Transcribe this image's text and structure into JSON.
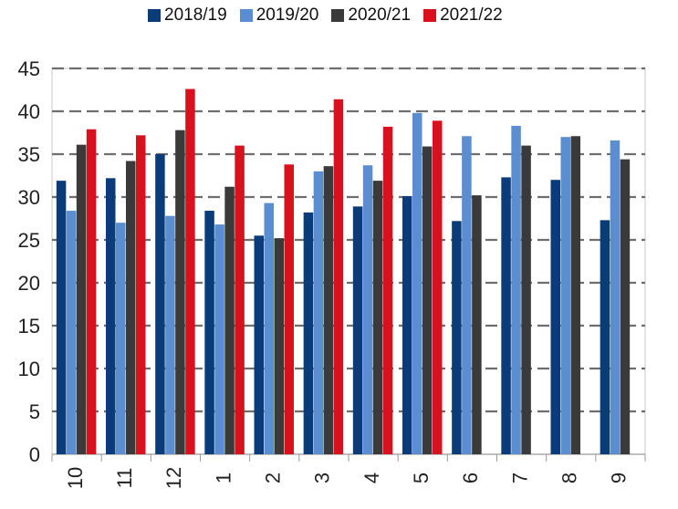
{
  "chart_data": {
    "type": "bar",
    "title": "",
    "xlabel": "",
    "ylabel": "",
    "categories": [
      "10",
      "11",
      "12",
      "1",
      "2",
      "3",
      "4",
      "5",
      "6",
      "7",
      "8",
      "9"
    ],
    "ylim": [
      0,
      45
    ],
    "yticks": [
      "0",
      "5",
      "10",
      "15",
      "20",
      "25",
      "30",
      "35",
      "40",
      "45"
    ],
    "grid": true,
    "legend_position": "top",
    "series": [
      {
        "name": "2018/19",
        "color": "#0b3c7a",
        "values": [
          31.9,
          32.2,
          35.0,
          28.4,
          25.5,
          28.2,
          28.9,
          30.1,
          27.2,
          32.3,
          32.0,
          27.3
        ]
      },
      {
        "name": "2019/20",
        "color": "#5b8ed1",
        "values": [
          28.4,
          27.0,
          27.8,
          26.8,
          29.3,
          33.0,
          33.7,
          39.8,
          37.1,
          38.3,
          37.0,
          36.6
        ]
      },
      {
        "name": "2020/21",
        "color": "#3a3a3a",
        "values": [
          36.1,
          34.2,
          37.8,
          31.2,
          25.2,
          33.6,
          31.9,
          35.9,
          30.2,
          36.0,
          37.1,
          34.4
        ]
      },
      {
        "name": "2021/22",
        "color": "#d9101e",
        "values": [
          37.9,
          37.2,
          42.6,
          36.0,
          33.8,
          41.4,
          38.2,
          38.9,
          null,
          null,
          null,
          null
        ]
      }
    ]
  }
}
